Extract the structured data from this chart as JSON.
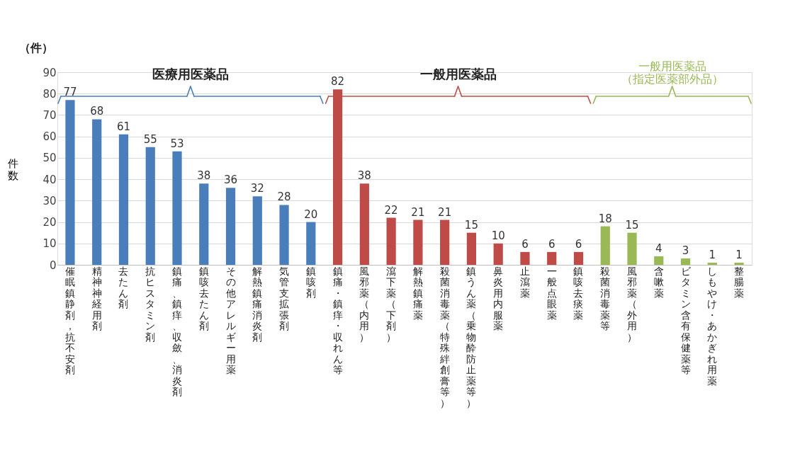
{
  "chart_data": {
    "type": "bar",
    "ylabel": "件数",
    "annotations": [
      "（件）"
    ],
    "categories": [
      "催眠鎮静剤，抗不安剤",
      "精神神経用剤",
      "去たん剤",
      "抗ヒスタミン剤",
      "鎮痛、鎮痒、収斂、消炎剤",
      "鎮咳去たん剤",
      "その他アレルギー用薬",
      "解熱鎮痛消炎剤",
      "気管支拡張剤",
      "鎮咳剤",
      "鎮痛・鎮痒・収れん等",
      "風邪薬（内用）",
      "瀉下薬（下剤）",
      "解熱鎮痛薬",
      "殺菌消毒薬（特殊絆創膏等）",
      "鎮うん薬（乗物酔防止薬等）",
      "鼻炎用内服薬",
      "止瀉薬",
      "一般点眼薬",
      "鎮咳去痰薬",
      "殺菌消毒薬等",
      "風邪薬（外用）",
      "含嗽薬",
      "ビタミン含有保健薬等",
      "しもやけ・あかぎれ用薬",
      "整腸薬"
    ],
    "series": [
      {
        "name": "医療用医薬品",
        "color": "#4a7ebb",
        "values": [
          77,
          68,
          61,
          55,
          53,
          38,
          36,
          32,
          28,
          20,
          null,
          null,
          null,
          null,
          null,
          null,
          null,
          null,
          null,
          null,
          null,
          null,
          null,
          null,
          null,
          null
        ]
      },
      {
        "name": "一般用医薬品",
        "color": "#be4b48",
        "values": [
          null,
          null,
          null,
          null,
          null,
          null,
          null,
          null,
          null,
          null,
          82,
          38,
          22,
          21,
          21,
          15,
          10,
          6,
          6,
          6,
          null,
          null,
          null,
          null,
          null,
          null
        ]
      },
      {
        "name": "一般用医薬品（指定医薬部外品）",
        "color": "#98b954",
        "values": [
          null,
          null,
          null,
          null,
          null,
          null,
          null,
          null,
          null,
          null,
          null,
          null,
          null,
          null,
          null,
          null,
          null,
          null,
          null,
          null,
          18,
          15,
          4,
          3,
          1,
          1
        ]
      }
    ],
    "ylim": [
      0,
      90
    ],
    "yticks": [
      0,
      10,
      20,
      30,
      40,
      50,
      60,
      70,
      80,
      90
    ],
    "grid": "y",
    "data_labels": true
  }
}
